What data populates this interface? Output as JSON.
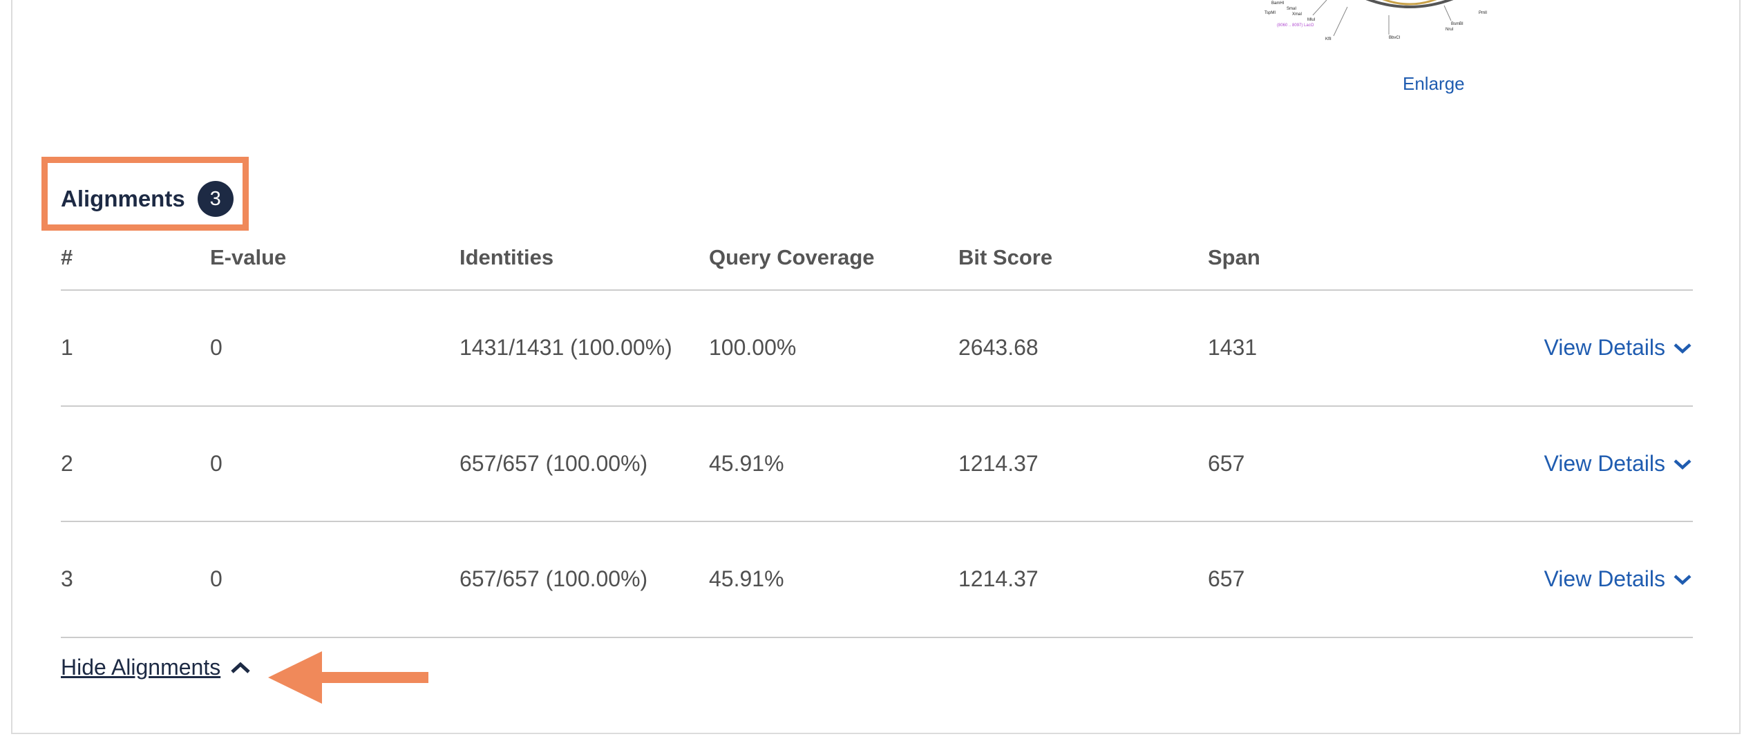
{
  "map": {
    "labels": [
      "BamHI",
      "SmaI",
      "TspMI",
      "XmaI",
      "MluI",
      "PmlI",
      "BsmBI",
      "NruI",
      "BbvCI",
      "KflI",
      "(8060 .. 8097) LacO"
    ],
    "enlarge_label": "Enlarge"
  },
  "alignments": {
    "title": "Alignments",
    "count": "3",
    "columns": [
      "#",
      "E-value",
      "Identities",
      "Query Coverage",
      "Bit Score",
      "Span"
    ],
    "rows": [
      {
        "num": "1",
        "evalue": "0",
        "identities": "1431/1431 (100.00%)",
        "coverage": "100.00%",
        "bitscore": "2643.68",
        "span": "1431",
        "details": "View Details"
      },
      {
        "num": "2",
        "evalue": "0",
        "identities": "657/657 (100.00%)",
        "coverage": "45.91%",
        "bitscore": "1214.37",
        "span": "657",
        "details": "View Details"
      },
      {
        "num": "3",
        "evalue": "0",
        "identities": "657/657 (100.00%)",
        "coverage": "45.91%",
        "bitscore": "1214.37",
        "span": "657",
        "details": "View Details"
      }
    ],
    "hide_label": "Hide Alignments"
  },
  "colors": {
    "accent": "#f0895a",
    "link": "#1f5cb0",
    "navy": "#1d2a44"
  }
}
